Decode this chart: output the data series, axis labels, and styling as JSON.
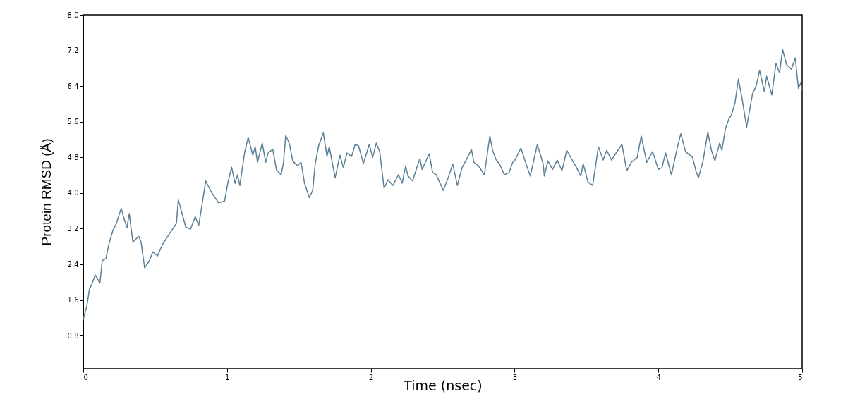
{
  "chart_data": {
    "type": "line",
    "xlabel": "Time (nsec)",
    "ylabel": "Protein RMSD (Å)",
    "xlim": [
      0,
      5
    ],
    "xticks": [
      0,
      1,
      2,
      3,
      4,
      5
    ],
    "ylim": [
      0.06,
      8.0
    ],
    "yticks": [
      0.8,
      1.6,
      2.4,
      3.2,
      {
        "value": 4.0,
        "label": "4.0"
      },
      4.8,
      5.6,
      6.4,
      7.2,
      {
        "value": 8.0,
        "label": "8.0"
      }
    ],
    "grid": false,
    "marker": "none",
    "line_style": "solid",
    "series": [
      {
        "color": "#5a7f96",
        "x": [
          0.0,
          0.026,
          0.043,
          0.059,
          0.083,
          0.116,
          0.132,
          0.157,
          0.182,
          0.206,
          0.231,
          0.264,
          0.28,
          0.304,
          0.32,
          0.345,
          0.386,
          0.402,
          0.427,
          0.46,
          0.484,
          0.517,
          0.55,
          0.582,
          0.615,
          0.648,
          0.661,
          0.681,
          0.713,
          0.746,
          0.779,
          0.803,
          0.852,
          0.893,
          0.942,
          0.983,
          1.007,
          1.032,
          1.056,
          1.073,
          1.089,
          1.122,
          1.147,
          1.179,
          1.196,
          1.212,
          1.245,
          1.269,
          1.286,
          1.318,
          1.343,
          1.375,
          1.392,
          1.408,
          1.433,
          1.457,
          1.49,
          1.515,
          1.539,
          1.572,
          1.596,
          1.613,
          1.637,
          1.67,
          1.695,
          1.711,
          1.752,
          1.785,
          1.809,
          1.834,
          1.866,
          1.891,
          1.915,
          1.948,
          1.989,
          2.013,
          2.038,
          2.062,
          2.092,
          2.12,
          2.153,
          2.193,
          2.218,
          2.242,
          2.259,
          2.291,
          2.324,
          2.341,
          2.357,
          2.406,
          2.43,
          2.455,
          2.504,
          2.537,
          2.57,
          2.602,
          2.635,
          2.676,
          2.7,
          2.717,
          2.749,
          2.79,
          2.828,
          2.847,
          2.872,
          2.896,
          2.929,
          2.962,
          2.987,
          3.003,
          3.044,
          3.068,
          3.109,
          3.158,
          3.199,
          3.207,
          3.232,
          3.264,
          3.297,
          3.33,
          3.363,
          3.395,
          3.428,
          3.461,
          3.477,
          3.51,
          3.543,
          3.583,
          3.616,
          3.641,
          3.674,
          3.706,
          3.747,
          3.78,
          3.812,
          3.853,
          3.881,
          3.919,
          3.96,
          4.0,
          4.025,
          4.05,
          4.091,
          4.131,
          4.156,
          4.189,
          4.238,
          4.262,
          4.279,
          4.312,
          4.344,
          4.369,
          4.393,
          4.426,
          4.442,
          4.467,
          4.491,
          4.508,
          4.532,
          4.557,
          4.582,
          4.614,
          4.655,
          4.68,
          4.704,
          4.737,
          4.753,
          4.789,
          4.818,
          4.843,
          4.864,
          4.892,
          4.925,
          4.952,
          4.974,
          4.99,
          4.998
        ],
        "values": [
          1.16,
          1.48,
          1.84,
          1.95,
          2.16,
          1.98,
          2.48,
          2.53,
          2.9,
          3.16,
          3.32,
          3.66,
          3.47,
          3.22,
          3.54,
          2.9,
          3.03,
          2.9,
          2.32,
          2.48,
          2.68,
          2.59,
          2.84,
          3.0,
          3.16,
          3.32,
          3.85,
          3.61,
          3.24,
          3.19,
          3.47,
          3.27,
          4.27,
          4.01,
          3.78,
          3.82,
          4.25,
          4.58,
          4.22,
          4.41,
          4.17,
          4.9,
          5.25,
          4.85,
          5.04,
          4.69,
          5.12,
          4.69,
          4.9,
          4.98,
          4.53,
          4.41,
          4.66,
          5.29,
          5.12,
          4.72,
          4.61,
          4.69,
          4.22,
          3.9,
          4.06,
          4.65,
          5.06,
          5.35,
          4.82,
          5.04,
          4.34,
          4.85,
          4.57,
          4.9,
          4.82,
          5.09,
          5.06,
          4.66,
          5.09,
          4.8,
          5.12,
          4.93,
          4.11,
          4.3,
          4.17,
          4.41,
          4.22,
          4.61,
          4.38,
          4.27,
          4.61,
          4.77,
          4.53,
          4.88,
          4.46,
          4.41,
          4.06,
          4.33,
          4.65,
          4.17,
          4.57,
          4.82,
          4.98,
          4.69,
          4.61,
          4.41,
          5.28,
          4.96,
          4.74,
          4.65,
          4.41,
          4.46,
          4.69,
          4.74,
          5.01,
          4.77,
          4.38,
          5.09,
          4.65,
          4.38,
          4.72,
          4.53,
          4.74,
          4.5,
          4.96,
          4.77,
          4.59,
          4.38,
          4.66,
          4.25,
          4.17,
          5.04,
          4.74,
          4.96,
          4.74,
          4.9,
          5.09,
          4.5,
          4.69,
          4.8,
          5.28,
          4.69,
          4.93,
          4.53,
          4.57,
          4.9,
          4.41,
          5.01,
          5.33,
          4.93,
          4.8,
          4.49,
          4.34,
          4.74,
          5.37,
          4.96,
          4.72,
          5.12,
          4.96,
          5.45,
          5.67,
          5.75,
          6.01,
          6.56,
          6.12,
          5.48,
          6.23,
          6.4,
          6.75,
          6.28,
          6.62,
          6.2,
          6.91,
          6.7,
          7.22,
          6.88,
          6.78,
          7.03,
          6.35,
          6.47,
          6.32
        ]
      }
    ]
  }
}
